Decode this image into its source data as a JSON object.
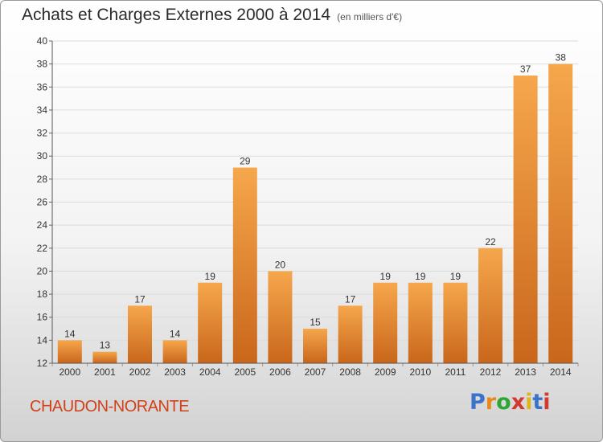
{
  "header": {
    "title": "Achats et Charges Externes 2000 à 2014",
    "subtitle": "(en milliers d'€)"
  },
  "footer": {
    "town": "CHAUDON-NORANTE",
    "logo": "Proxiti",
    "logo_colors": [
      "#3a73c9",
      "#e8891c",
      "#2ea636",
      "#d23a2e",
      "#e0b51a",
      "#3a73c9",
      "#d23a2e"
    ]
  },
  "chart_data": {
    "type": "bar",
    "title": "Achats et Charges Externes 2000 à 2014",
    "subtitle": "(en milliers d'€)",
    "categories": [
      "2000",
      "2001",
      "2002",
      "2003",
      "2004",
      "2005",
      "2006",
      "2007",
      "2008",
      "2009",
      "2010",
      "2011",
      "2012",
      "2013",
      "2014"
    ],
    "values": [
      14,
      13,
      17,
      14,
      19,
      29,
      20,
      15,
      17,
      19,
      19,
      19,
      22,
      37,
      38
    ],
    "ylim": [
      12,
      40
    ],
    "yticks": [
      12,
      14,
      16,
      18,
      20,
      22,
      24,
      26,
      28,
      30,
      32,
      34,
      36,
      38,
      40
    ],
    "grid": true,
    "bar_color_top": "#f6a74c",
    "bar_color_bottom": "#c9661b"
  }
}
